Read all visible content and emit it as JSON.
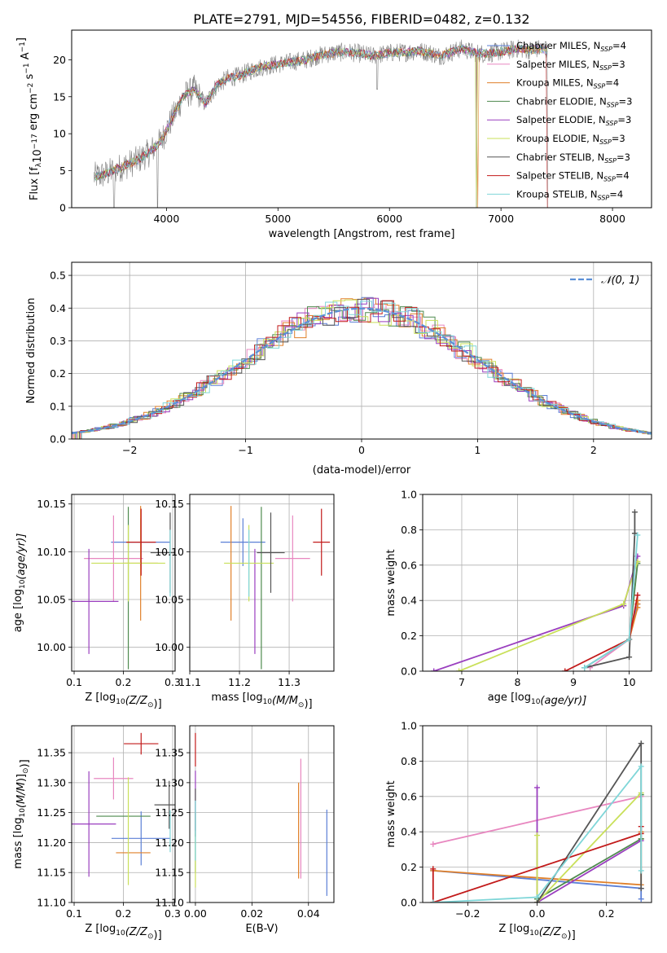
{
  "figure_title": "PLATE=2791, MJD=54556, FIBERID=0482, z=0.132",
  "colors": {
    "Chabrier MILES": "#5b7fd6",
    "Salpeter MILES": "#e887c0",
    "Kroupa MILES": "#e0802a",
    "Chabrier ELODIE": "#4e8a4e",
    "Salpeter ELODIE": "#9a3fbf",
    "Kroupa ELODIE": "#c9e05a",
    "Chabrier STELIB": "#555555",
    "Salpeter STELIB": "#c21a1a",
    "Kroupa STELIB": "#7fd6d8",
    "data": "#808080",
    "gaussian": "#5b8fd6"
  },
  "chart_data": [
    {
      "id": "spectrum",
      "type": "line",
      "title": "",
      "xlabel": "wavelength [Angstrom, rest frame]",
      "ylabel": "Flux [f",
      "ylabel_sub": "λ",
      "ylabel_rest": "10",
      "ylabel_sup1": "−17",
      "ylabel_unit": " erg cm",
      "ylabel_sup2": "−2",
      "ylabel_unit2": " s",
      "ylabel_sup3": "−1",
      "ylabel_unit3": " A",
      "ylabel_sup4": "−1",
      "ylabel_end": "]",
      "xlim": [
        3150,
        8350
      ],
      "ylim": [
        0,
        24
      ],
      "xticks": [
        4000,
        5000,
        6000,
        7000,
        8000
      ],
      "yticks": [
        0,
        5,
        10,
        15,
        20
      ],
      "grid": false,
      "legend_position": "upper-right",
      "legend": [
        {
          "name": "Chabrier MILES",
          "nssp": "4"
        },
        {
          "name": "Salpeter MILES",
          "nssp": "3"
        },
        {
          "name": "Kroupa MILES",
          "nssp": "4"
        },
        {
          "name": "Chabrier ELODIE",
          "nssp": "3"
        },
        {
          "name": "Salpeter ELODIE",
          "nssp": "3"
        },
        {
          "name": "Kroupa ELODIE",
          "nssp": "3"
        },
        {
          "name": "Chabrier STELIB",
          "nssp": "3"
        },
        {
          "name": "Salpeter STELIB",
          "nssp": "4"
        },
        {
          "name": "Kroupa STELIB",
          "nssp": "4"
        }
      ],
      "continuum": {
        "x": [
          3350,
          3450,
          3550,
          3650,
          3750,
          3850,
          3950,
          4050,
          4150,
          4250,
          4350,
          4450,
          4550,
          4650,
          4750,
          4850,
          4950,
          5050,
          5150,
          5250,
          5350,
          5450,
          5550,
          5650,
          5750,
          5850,
          5950,
          6050,
          6150,
          6250,
          6350,
          6450,
          6550,
          6650,
          6750,
          6850,
          6950,
          7050,
          7150,
          7250,
          7350,
          7420
        ],
        "y": [
          4.2,
          4.5,
          5.2,
          5.8,
          6.5,
          7.5,
          9.0,
          12.0,
          15.0,
          16.0,
          14.0,
          16.5,
          17.5,
          17.8,
          18.5,
          19.0,
          19.3,
          19.5,
          19.8,
          20.0,
          20.5,
          20.8,
          21.0,
          21.0,
          20.8,
          20.5,
          20.8,
          21.0,
          21.0,
          21.2,
          21.0,
          20.5,
          21.0,
          21.5,
          21.0,
          20.8,
          21.0,
          21.2,
          21.5,
          21.3,
          21.5,
          21.2
        ]
      },
      "data_drops": [
        {
          "x": 3530,
          "y": 0.0
        },
        {
          "x": 3920,
          "y": 0.0
        },
        {
          "x": 5890,
          "y": 16.0
        },
        {
          "x": 6780,
          "y": 0.0
        },
        {
          "x": 7420,
          "y": 0.0
        }
      ]
    },
    {
      "id": "residuals",
      "type": "histogram",
      "xlabel": "(data-model)/error",
      "ylabel": "Normed distribution",
      "xlim": [
        -2.5,
        2.5
      ],
      "ylim": [
        0,
        0.54
      ],
      "xticks": [
        -2,
        -1,
        0,
        1,
        2
      ],
      "yticks": [
        0.0,
        0.1,
        0.2,
        0.3,
        0.4,
        0.5
      ],
      "grid": true,
      "legend_label": "𝒩(0, 1)",
      "legend_position": "upper-right",
      "bin_width": 0.1
    },
    {
      "id": "age-vs-Z",
      "type": "errorbar",
      "xlabel": "Z [log",
      "xlabel_sub": "10",
      "xlabel_rest": "(Z/Z",
      "xlabel_odot": "⊙",
      "xlabel_end": ")]",
      "ylabel": "age  [log",
      "ylabel_sub": "10",
      "ylabel_rest": "(age/yr)]",
      "xlim": [
        0.095,
        0.305
      ],
      "ylim": [
        9.975,
        10.16
      ],
      "xticks": [
        0.1,
        0.2,
        0.3
      ],
      "yticks": [
        10.0,
        10.05,
        10.1,
        10.15
      ],
      "grid": true,
      "points": [
        {
          "model": "Chabrier MILES",
          "x": 0.235,
          "y": 10.11,
          "xerr": 0.06,
          "yerr": 0.025
        },
        {
          "model": "Salpeter MILES",
          "x": 0.18,
          "y": 10.093,
          "xerr": 0.06,
          "yerr": 0.045
        },
        {
          "model": "Kroupa MILES",
          "x": 0.235,
          "y": 10.088,
          "xerr": 0.035,
          "yerr": 0.06
        },
        {
          "model": "Chabrier ELODIE",
          "x": 0.21,
          "y": 10.062,
          "xerr": 0.0,
          "yerr": 0.085
        },
        {
          "model": "Salpeter ELODIE",
          "x": 0.13,
          "y": 10.048,
          "xerr": 0.06,
          "yerr": 0.055
        },
        {
          "model": "Kroupa ELODIE",
          "x": 0.21,
          "y": 10.088,
          "xerr": 0.075,
          "yerr": 0.04
        },
        {
          "model": "Chabrier STELIB",
          "x": 0.295,
          "y": 10.099,
          "xerr": 0.04,
          "yerr": 0.042
        },
        {
          "model": "Salpeter STELIB",
          "x": 0.236,
          "y": 10.11,
          "xerr": 0.03,
          "yerr": 0.035
        },
        {
          "model": "Kroupa STELIB",
          "x": 0.295,
          "y": 10.088,
          "xerr": 0.0,
          "yerr": 0.035
        }
      ]
    },
    {
      "id": "age-vs-mass",
      "type": "errorbar",
      "xlabel": "mass [log",
      "xlabel_sub": "10",
      "xlabel_rest": "(M/M",
      "xlabel_odot": "⊙",
      "xlabel_end": ")]",
      "xlim": [
        11.1,
        11.39
      ],
      "ylim": [
        9.975,
        10.16
      ],
      "xticks": [
        11.1,
        11.2,
        11.3
      ],
      "yticks": [
        10.0,
        10.05,
        10.1,
        10.15
      ],
      "grid": true,
      "points": [
        {
          "model": "Chabrier MILES",
          "x": 11.207,
          "y": 10.11,
          "xerr": 0.045,
          "yerr": 0.025
        },
        {
          "model": "Salpeter MILES",
          "x": 11.307,
          "y": 10.093,
          "xerr": 0.035,
          "yerr": 0.045
        },
        {
          "model": "Kroupa MILES",
          "x": 11.183,
          "y": 10.088,
          "xerr": 0.0,
          "yerr": 0.06
        },
        {
          "model": "Chabrier ELODIE",
          "x": 11.244,
          "y": 10.062,
          "xerr": 0.0,
          "yerr": 0.085
        },
        {
          "model": "Salpeter ELODIE",
          "x": 11.231,
          "y": 10.048,
          "xerr": 0.0,
          "yerr": 0.055
        },
        {
          "model": "Kroupa ELODIE",
          "x": 11.219,
          "y": 10.088,
          "xerr": 0.05,
          "yerr": 0.04
        },
        {
          "model": "Chabrier STELIB",
          "x": 11.263,
          "y": 10.099,
          "xerr": 0.028,
          "yerr": 0.042
        },
        {
          "model": "Salpeter STELIB",
          "x": 11.365,
          "y": 10.11,
          "xerr": 0.017,
          "yerr": 0.035
        },
        {
          "model": "Kroupa STELIB",
          "x": 11.219,
          "y": 10.088,
          "xerr": 0.0,
          "yerr": 0.035
        }
      ]
    },
    {
      "id": "weight-vs-age",
      "type": "line",
      "xlabel": "age  [log",
      "xlabel_sub": "10",
      "xlabel_rest": "(age/yr)]",
      "ylabel": "mass weight",
      "xlim": [
        6.3,
        10.4
      ],
      "ylim": [
        0,
        1.0
      ],
      "xticks": [
        7,
        8,
        9,
        10
      ],
      "yticks": [
        0.0,
        0.2,
        0.4,
        0.6,
        0.8,
        1.0
      ],
      "grid": true,
      "series": [
        {
          "model": "Chabrier MILES",
          "x": [
            9.2,
            10.0,
            10.15,
            10.15
          ],
          "y": [
            0.02,
            0.18,
            0.38,
            0.4
          ]
        },
        {
          "model": "Salpeter MILES",
          "x": [
            9.3,
            10.0,
            10.15
          ],
          "y": [
            0.02,
            0.18,
            0.62
          ]
        },
        {
          "model": "Kroupa MILES",
          "x": [
            10.0,
            10.15,
            10.15,
            10.15
          ],
          "y": [
            0.18,
            0.36,
            0.38,
            0.4
          ]
        },
        {
          "model": "Chabrier ELODIE",
          "x": [
            9.2,
            10.0,
            10.15
          ],
          "y": [
            0.02,
            0.18,
            0.61
          ]
        },
        {
          "model": "Salpeter ELODIE",
          "x": [
            6.5,
            9.9,
            10.15
          ],
          "y": [
            0.0,
            0.37,
            0.65
          ]
        },
        {
          "model": "Kroupa ELODIE",
          "x": [
            6.95,
            9.9,
            10.15
          ],
          "y": [
            0.0,
            0.38,
            0.62
          ]
        },
        {
          "model": "Chabrier STELIB",
          "x": [
            9.2,
            10.0,
            10.1,
            10.1
          ],
          "y": [
            0.02,
            0.08,
            0.78,
            0.9
          ]
        },
        {
          "model": "Salpeter STELIB",
          "x": [
            8.85,
            10.0,
            10.15
          ],
          "y": [
            0.0,
            0.18,
            0.43
          ]
        },
        {
          "model": "Kroupa STELIB",
          "x": [
            9.2,
            10.0,
            10.15
          ],
          "y": [
            0.02,
            0.18,
            0.77
          ]
        }
      ]
    },
    {
      "id": "mass-vs-Z",
      "type": "errorbar",
      "xlabel": "Z [log",
      "xlabel_sub": "10",
      "xlabel_rest": "(Z/Z",
      "xlabel_odot": "⊙",
      "xlabel_end": ")]",
      "ylabel": "mass [log",
      "ylabel_sub": "10",
      "ylabel_rest": "(M/M",
      "ylabel_odot": "⊙",
      "ylabel_end": ")]",
      "xlim": [
        0.095,
        0.305
      ],
      "ylim": [
        11.1,
        11.395
      ],
      "xticks": [
        0.1,
        0.2,
        0.3
      ],
      "yticks": [
        11.1,
        11.15,
        11.2,
        11.25,
        11.3,
        11.35
      ],
      "grid": true,
      "points": [
        {
          "model": "Chabrier MILES",
          "x": 0.236,
          "y": 11.207,
          "xerr": 0.06,
          "yerr": 0.045
        },
        {
          "model": "Salpeter MILES",
          "x": 0.18,
          "y": 11.307,
          "xerr": 0.04,
          "yerr": 0.035
        },
        {
          "model": "Kroupa MILES",
          "x": 0.22,
          "y": 11.183,
          "xerr": 0.035,
          "yerr": 0.0
        },
        {
          "model": "Chabrier ELODIE",
          "x": 0.2,
          "y": 11.244,
          "xerr": 0.055,
          "yerr": 0.0
        },
        {
          "model": "Salpeter ELODIE",
          "x": 0.13,
          "y": 11.231,
          "xerr": 0.055,
          "yerr": 0.088
        },
        {
          "model": "Kroupa ELODIE",
          "x": 0.21,
          "y": 11.219,
          "xerr": 0.0,
          "yerr": 0.09
        },
        {
          "model": "Chabrier STELIB",
          "x": 0.293,
          "y": 11.263,
          "xerr": 0.03,
          "yerr": 0.04
        },
        {
          "model": "Salpeter STELIB",
          "x": 0.236,
          "y": 11.365,
          "xerr": 0.035,
          "yerr": 0.018
        },
        {
          "model": "Kroupa STELIB",
          "x": 0.295,
          "y": 11.219,
          "xerr": 0.0,
          "yerr": 0.035
        }
      ]
    },
    {
      "id": "mass-vs-ebv",
      "type": "errorbar",
      "xlabel": "E(B-V)",
      "xlim": [
        -0.002,
        0.049
      ],
      "ylim": [
        11.1,
        11.395
      ],
      "xticks": [
        0.0,
        0.02,
        0.04
      ],
      "yticks": [
        11.1,
        11.15,
        11.2,
        11.25,
        11.3,
        11.35
      ],
      "grid": true,
      "points": [
        {
          "model": "Chabrier MILES",
          "x": 0.0465,
          "y": 11.183,
          "xerr": 0.0,
          "yerr": 0.072
        },
        {
          "model": "Salpeter MILES",
          "x": 0.0373,
          "y": 11.24,
          "xerr": 0.0,
          "yerr": 0.1
        },
        {
          "model": "Kroupa MILES",
          "x": 0.0365,
          "y": 11.22,
          "xerr": 0.0,
          "yerr": 0.08
        },
        {
          "model": "Chabrier ELODIE",
          "x": 0.0,
          "y": 11.2,
          "xerr": 0.0,
          "yerr": 0.05
        },
        {
          "model": "Salpeter ELODIE",
          "x": 0.0,
          "y": 11.27,
          "xerr": 0.0,
          "yerr": 0.05
        },
        {
          "model": "Kroupa ELODIE",
          "x": 0.0,
          "y": 11.17,
          "xerr": 0.0,
          "yerr": 0.045
        },
        {
          "model": "Chabrier STELIB",
          "x": 0.0,
          "y": 11.25,
          "xerr": 0.0,
          "yerr": 0.04
        },
        {
          "model": "Salpeter STELIB",
          "x": 0.0,
          "y": 11.355,
          "xerr": 0.0,
          "yerr": 0.028
        },
        {
          "model": "Kroupa STELIB",
          "x": 0.0,
          "y": 11.22,
          "xerr": 0.0,
          "yerr": 0.05
        }
      ]
    },
    {
      "id": "weight-vs-Z",
      "type": "line",
      "xlabel": "Z [log",
      "xlabel_sub": "10",
      "xlabel_rest": "(Z/Z",
      "xlabel_odot": "⊙",
      "xlabel_end": ")]",
      "ylabel": "mass weight",
      "xlim": [
        -0.33,
        0.33
      ],
      "ylim": [
        0,
        1.0
      ],
      "xticks": [
        -0.2,
        0.0,
        0.2
      ],
      "yticks": [
        0.0,
        0.2,
        0.4,
        0.6,
        0.8,
        1.0
      ],
      "grid": true,
      "series": [
        {
          "model": "Chabrier MILES",
          "x": [
            -0.3,
            0.3,
            0.3
          ],
          "y": [
            0.18,
            0.08,
            0.02
          ]
        },
        {
          "model": "Salpeter MILES",
          "x": [
            -0.3,
            0.3
          ],
          "y": [
            0.33,
            0.6
          ]
        },
        {
          "model": "Kroupa MILES",
          "x": [
            -0.3,
            0.3,
            0.3,
            0.3
          ],
          "y": [
            0.18,
            0.1,
            0.36,
            0.4
          ]
        },
        {
          "model": "Chabrier ELODIE",
          "x": [
            0.0,
            0.3,
            0.3
          ],
          "y": [
            0.02,
            0.36,
            0.61
          ]
        },
        {
          "model": "Salpeter ELODIE",
          "x": [
            0.0,
            0.0,
            0.3
          ],
          "y": [
            0.65,
            0.0,
            0.35
          ]
        },
        {
          "model": "Kroupa ELODIE",
          "x": [
            0.0,
            0.0,
            0.3
          ],
          "y": [
            0.38,
            0.0,
            0.62
          ]
        },
        {
          "model": "Chabrier STELIB",
          "x": [
            0.0,
            0.3,
            0.3
          ],
          "y": [
            0.0,
            0.9,
            0.08
          ]
        },
        {
          "model": "Salpeter STELIB",
          "x": [
            -0.3,
            -0.3,
            0.3,
            0.3
          ],
          "y": [
            0.19,
            0.0,
            0.39,
            0.43
          ]
        },
        {
          "model": "Kroupa STELIB",
          "x": [
            -0.3,
            0.0,
            0.3,
            0.3
          ],
          "y": [
            0.0,
            0.03,
            0.77,
            0.18
          ]
        }
      ]
    }
  ]
}
